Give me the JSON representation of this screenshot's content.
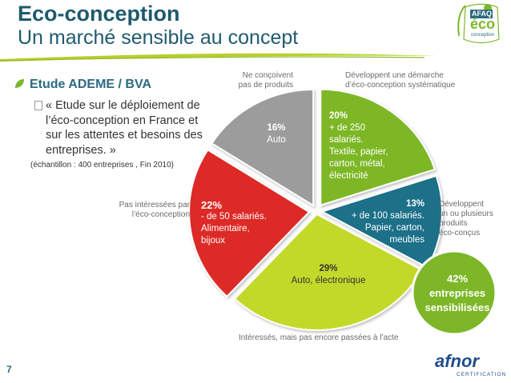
{
  "header": {
    "title": "Eco-conception",
    "subtitle": "Un marché sensible au concept"
  },
  "study": {
    "label": "Etude ADEME / BVA",
    "description": "« Etude sur le déploiement de l’éco-conception en France et sur les attentes et besoins des entreprises. »",
    "sample": "(échantillon : 400 entreprises , Fin 2010)"
  },
  "chart_data": {
    "type": "pie",
    "slices": [
      {
        "percent": "20%",
        "value": 20,
        "detail": [
          "+ de 250",
          "salariés.",
          "Textile, papier,",
          "carton, métal,",
          "électricité"
        ],
        "category": [
          "Développent une démarche",
          "d’éco-conception systématique"
        ],
        "color": "#7db728"
      },
      {
        "percent": "13%",
        "value": 13,
        "detail": [
          "+ de 100 salariés.",
          "Papier, carton,",
          "meubles"
        ],
        "category": [
          "Développent",
          "un ou plusieurs",
          "produits",
          "éco-conçus"
        ],
        "color": "#1f7088"
      },
      {
        "percent": "29%",
        "value": 29,
        "detail": [
          "Auto, électronique"
        ],
        "category": [
          "Intéressés, mais pas encore passées à l’acte"
        ],
        "color": "#c3d92a"
      },
      {
        "percent": "22%",
        "value": 22,
        "detail": [
          "- de 50 salariés.",
          "Alimentaire,",
          "bijoux"
        ],
        "category": [
          "Pas intéressées par",
          "l’éco-conception"
        ],
        "color": "#dd2a27"
      },
      {
        "percent": "16%",
        "value": 16,
        "detail": [
          "Auto"
        ],
        "category": [
          "Ne conçoivent",
          "pas de produits"
        ],
        "color": "#9c9c9c"
      }
    ]
  },
  "callout": {
    "lines": [
      "42%",
      "entreprises",
      "sensibilisées"
    ],
    "color": "#7db728"
  },
  "logos": {
    "afaq_top": "AFAQ",
    "afaq_eco": "éco",
    "afaq_bottom": "conception",
    "afnor": "afnor",
    "afnor_sub": "CERTIFICATION"
  },
  "footer": {
    "page_number": "7"
  }
}
